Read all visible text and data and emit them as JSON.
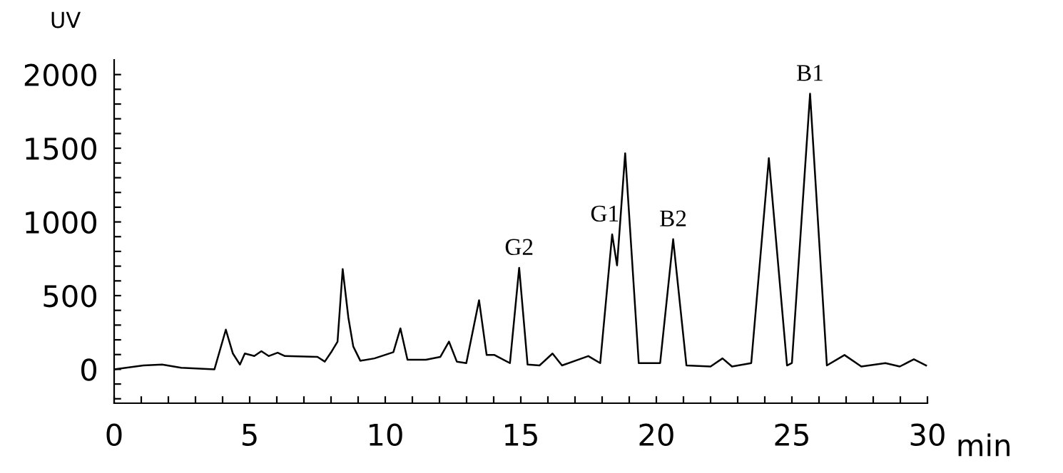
{
  "chart_data": {
    "type": "line",
    "xlabel": "min",
    "ylabel": "UV",
    "x": [
      0,
      1.08,
      1.77,
      2.47,
      3.7,
      4.12,
      4.38,
      4.64,
      4.82,
      5.17,
      5.43,
      5.7,
      6.03,
      6.3,
      7.5,
      7.77,
      8.03,
      8.24,
      8.43,
      8.64,
      8.82,
      9.08,
      9.6,
      10.3,
      10.56,
      10.82,
      11.5,
      12.03,
      12.35,
      12.64,
      12.99,
      13.46,
      13.74,
      14.03,
      14.6,
      14.94,
      15.25,
      15.69,
      16.17,
      16.52,
      17.49,
      17.93,
      18.37,
      18.55,
      18.85,
      19.35,
      20.14,
      20.62,
      21.11,
      22.0,
      22.44,
      22.79,
      23.5,
      24.15,
      24.82,
      25.0,
      25.67,
      26.29,
      26.94,
      27.56,
      28.45,
      28.98,
      29.5,
      29.95
    ],
    "series": [
      {
        "color": "#000000",
        "values": [
          0,
          26,
          32,
          10,
          0,
          269,
          107,
          32,
          107,
          90,
          123,
          90,
          113,
          90,
          84,
          52,
          123,
          188,
          680,
          350,
          155,
          58,
          74,
          116,
          278,
          65,
          65,
          84,
          188,
          52,
          42,
          469,
          97,
          97,
          42,
          689,
          32,
          26,
          107,
          26,
          90,
          42,
          916,
          705,
          1466,
          42,
          42,
          883,
          26,
          19,
          74,
          19,
          42,
          1433,
          26,
          42,
          1870,
          26,
          97,
          19,
          42,
          19,
          68,
          26
        ]
      }
    ],
    "xlim": [
      0,
      30
    ],
    "ylim": [
      -230,
      2100
    ],
    "xticks": [
      0,
      {
        "value": 1,
        "label": null
      },
      {
        "value": 2,
        "label": null
      },
      {
        "value": 3,
        "label": null
      },
      {
        "value": 4,
        "label": null
      },
      5,
      {
        "value": 6,
        "label": null
      },
      {
        "value": 7,
        "label": null
      },
      {
        "value": 8,
        "label": null
      },
      {
        "value": 9,
        "label": null
      },
      10,
      {
        "value": 11,
        "label": null
      },
      {
        "value": 12,
        "label": null
      },
      {
        "value": 13,
        "label": null
      },
      {
        "value": 14,
        "label": null
      },
      15,
      {
        "value": 16,
        "label": null
      },
      {
        "value": 17,
        "label": null
      },
      {
        "value": 18,
        "label": null
      },
      {
        "value": 19,
        "label": null
      },
      20,
      {
        "value": 21,
        "label": null
      },
      {
        "value": 22,
        "label": null
      },
      {
        "value": 23,
        "label": null
      },
      {
        "value": 24,
        "label": null
      },
      25,
      {
        "value": 26,
        "label": null
      },
      {
        "value": 27,
        "label": null
      },
      {
        "value": 28,
        "label": null
      },
      {
        "value": 29,
        "label": null
      },
      30
    ],
    "yticks": [
      {
        "value": -200,
        "label": null
      },
      {
        "value": -100,
        "label": null
      },
      0,
      {
        "value": 100,
        "label": null
      },
      {
        "value": 200,
        "label": null
      },
      {
        "value": 300,
        "label": null
      },
      {
        "value": 400,
        "label": null
      },
      500,
      {
        "value": 600,
        "label": null
      },
      {
        "value": 700,
        "label": null
      },
      {
        "value": 800,
        "label": null
      },
      {
        "value": 900,
        "label": null
      },
      1000,
      {
        "value": 1100,
        "label": null
      },
      {
        "value": 1200,
        "label": null
      },
      {
        "value": 1300,
        "label": null
      },
      {
        "value": 1400,
        "label": null
      },
      1500,
      {
        "value": 1600,
        "label": null
      },
      {
        "value": 1700,
        "label": null
      },
      {
        "value": 1800,
        "label": null
      },
      {
        "value": 1900,
        "label": null
      },
      2000
    ],
    "annotations": [
      {
        "text": "G2",
        "x": 14.94,
        "y": 689
      },
      {
        "text": "G1",
        "x": 18.1,
        "y": 916
      },
      {
        "text": "B2",
        "x": 20.62,
        "y": 883
      },
      {
        "text": "B1",
        "x": 25.67,
        "y": 1870
      }
    ],
    "grid": false,
    "legend": false,
    "marker": "none",
    "line_style": "solid"
  }
}
